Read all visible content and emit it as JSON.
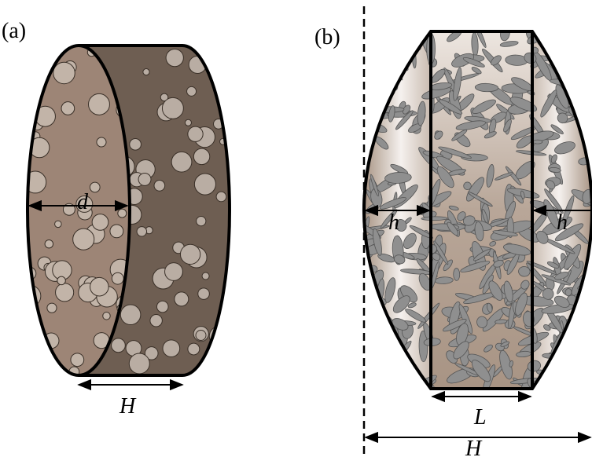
{
  "panels": [
    {
      "label": "(a)",
      "dimensions": [
        "d",
        "H"
      ]
    },
    {
      "label": "(b)",
      "dimensions": [
        "h",
        "h",
        "L",
        "H"
      ]
    }
  ]
}
